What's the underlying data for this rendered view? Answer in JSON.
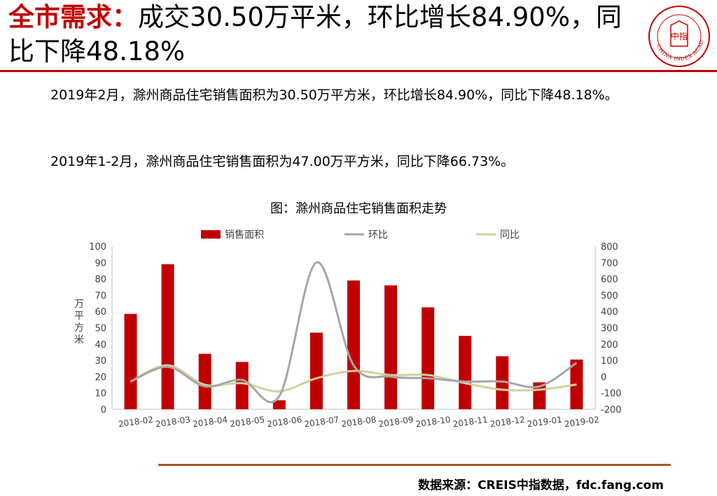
{
  "header": {
    "title_highlight": "全市需求：",
    "title_text": "成交30.50万平米，环比增长84.90%，同比下降48.18%"
  },
  "logo": {
    "center_text": "中指",
    "ring_text": "CHINA INDEX ACADEMY"
  },
  "paragraphs": {
    "p1": "2019年2月，滁州商品住宅销售面积为30.50万平方米，环比增长84.90%，同比下降48.18%。",
    "p2": "2019年1-2月，滁州商品住宅销售面积为47.00万平方米，同比下降66.73%。"
  },
  "chart_title": "图：滁州商品住宅销售面积走势",
  "source": "数据来源：CREIS中指数据，fdc.fang.com",
  "colors": {
    "accent": "#c00000",
    "bar": "#c00000",
    "mom": "#a6a6a6",
    "yoy": "#d6cf9e",
    "bottom_rule": "#b3541e"
  },
  "chart_data": {
    "type": "bar",
    "categories": [
      "2018-02",
      "2018-03",
      "2018-04",
      "2018-05",
      "2018-06",
      "2018-07",
      "2018-08",
      "2018-09",
      "2018-10",
      "2018-11",
      "2018-12",
      "2019-01",
      "2019-02"
    ],
    "series": [
      {
        "name": "销售面积",
        "type": "bar",
        "axis": "left",
        "values": [
          58.5,
          89,
          34,
          29,
          5.5,
          47,
          79,
          76,
          62.5,
          45,
          32.5,
          16.5,
          30.5
        ]
      },
      {
        "name": "环比",
        "type": "line",
        "axis": "right",
        "values": [
          -30,
          60,
          -60,
          -20,
          -120,
          700,
          70,
          0,
          -10,
          -30,
          -30,
          -60,
          85
        ]
      },
      {
        "name": "同比",
        "type": "line",
        "axis": "right",
        "values": [
          -30,
          70,
          -50,
          -40,
          -90,
          -10,
          35,
          10,
          10,
          -40,
          -80,
          -80,
          -48
        ]
      }
    ],
    "ylabel": "万平方米",
    "ylabel_right": "%",
    "ylim": [
      0,
      100
    ],
    "ylim_right": [
      -200,
      800
    ],
    "yticks": [
      0,
      10,
      20,
      30,
      40,
      50,
      60,
      70,
      80,
      90,
      100
    ],
    "yticks_right": [
      -200,
      -100,
      0,
      100,
      200,
      300,
      400,
      500,
      600,
      700,
      800
    ],
    "legend_position": "top",
    "grid": false
  }
}
